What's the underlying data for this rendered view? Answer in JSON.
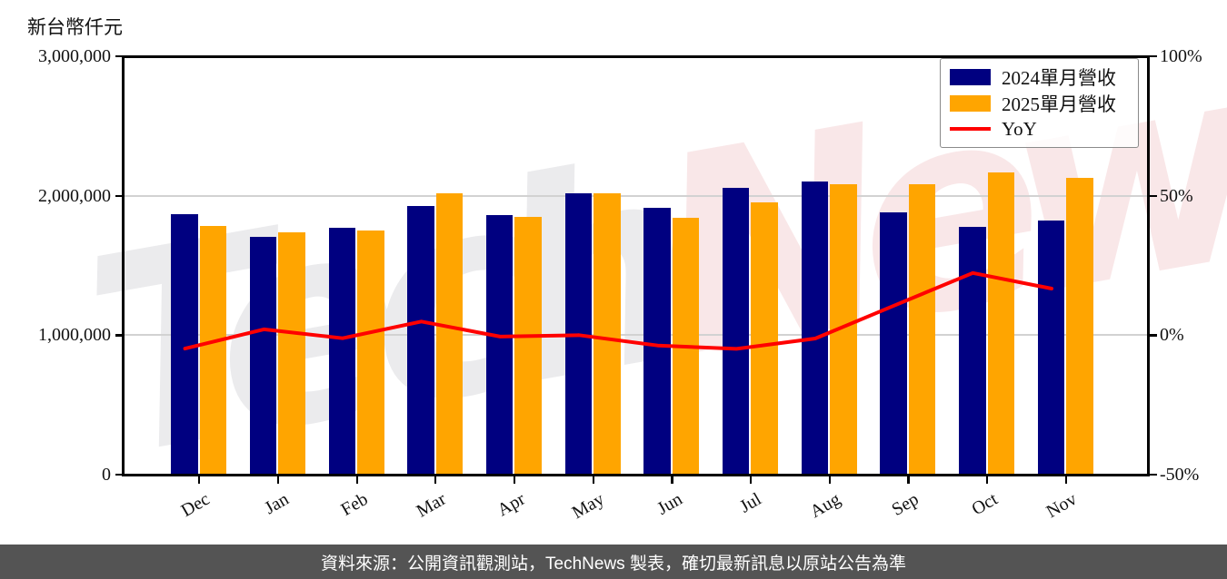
{
  "header": {
    "y_axis_title": "新台幣仟元"
  },
  "legend": {
    "series_2024_label": "2024單月營收",
    "series_2025_label": "2025單月營收",
    "yoy_label": "YoY"
  },
  "watermark": {
    "part1": "Tech",
    "part2": "News"
  },
  "footer": {
    "source_text": "資料來源：公開資訊觀測站，TechNews 製表，確切最新訊息以原站公告為準"
  },
  "colors": {
    "bar_2024": "#000080",
    "bar_2025": "#FFA500",
    "yoy_line": "#FF0000",
    "grid": "#d2d2d2",
    "watermark_gray": "#ebebed",
    "watermark_pink": "#f9e7e8",
    "footer_bg": "#545454",
    "legend_border": "#8a8a8a"
  },
  "chart_data": {
    "type": "bar",
    "title": "",
    "categories": [
      "Dec",
      "Jan",
      "Feb",
      "Mar",
      "Apr",
      "May",
      "Jun",
      "Jul",
      "Aug",
      "Sep",
      "Oct",
      "Nov"
    ],
    "series": [
      {
        "name": "2024單月營收",
        "type": "bar",
        "axis": "left",
        "values": [
          1870000,
          1705000,
          1770000,
          1925000,
          1860000,
          2015000,
          1910000,
          2055000,
          2105000,
          1880000,
          1775000,
          1825000
        ]
      },
      {
        "name": "2025單月營收",
        "type": "bar",
        "axis": "left",
        "values": [
          1780000,
          1740000,
          1750000,
          2020000,
          1850000,
          2015000,
          1840000,
          1955000,
          2080000,
          2080000,
          2170000,
          2130000
        ]
      },
      {
        "name": "YoY",
        "type": "line",
        "axis": "right",
        "unit": "%",
        "values": [
          -4.8,
          2.1,
          -1.1,
          4.9,
          -0.5,
          0.0,
          -3.7,
          -4.9,
          -1.2,
          10.6,
          22.3,
          16.7
        ]
      }
    ],
    "left_axis": {
      "title": "新台幣仟元",
      "range": [
        0,
        3000000
      ],
      "tick_labels": [
        "0",
        "1,000,000",
        "2,000,000",
        "3,000,000"
      ]
    },
    "right_axis": {
      "range": [
        -50,
        100
      ],
      "tick_labels": [
        "-50%",
        "0%",
        "50%",
        "100%"
      ]
    },
    "grid": "horizontal",
    "legend_position": "top-right"
  }
}
